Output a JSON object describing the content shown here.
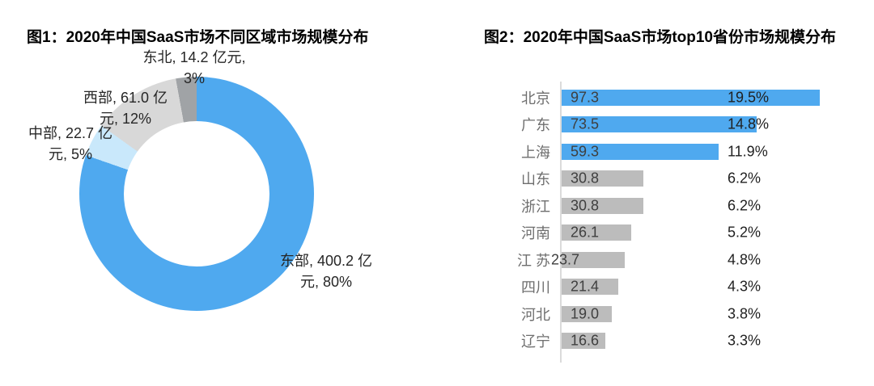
{
  "colors": {
    "east": "#4FA9EF",
    "central": "#C9E8FB",
    "west": "#D8D8D8",
    "northeast": "#A0A3A6",
    "bar_blue": "#4FA9EF",
    "bar_gray": "#BCBCBC",
    "axis_line": "#DBDBDB",
    "category_text": "#6E6E6E",
    "value_text": "#3F3F3F",
    "percent_text": "#1F1F1F",
    "title_text": "#000000"
  },
  "chart_data": [
    {
      "type": "pie",
      "subtype": "donut",
      "title": "图1：2020年中国SaaS市场不同区域市场规模分布",
      "unit": "亿元",
      "legend": "none",
      "slices": [
        {
          "name": "东部",
          "value": 400.2,
          "percent": "80%",
          "color_key": "east",
          "label_lines": [
            "东部, 400.2 亿",
            "元, 80%"
          ]
        },
        {
          "name": "中部",
          "value": 22.7,
          "percent": "5%",
          "color_key": "central",
          "label_lines": [
            "中部, 22.7 亿",
            "元, 5%"
          ]
        },
        {
          "name": "西部",
          "value": 61.0,
          "percent": "12%",
          "color_key": "west",
          "label_lines": [
            "西部, 61.0 亿",
            "元, 12%"
          ]
        },
        {
          "name": "东北",
          "value": 14.2,
          "percent": "3%",
          "color_key": "northeast",
          "label_lines": [
            "东北, 14.2 亿元,",
            "3%"
          ]
        }
      ]
    },
    {
      "type": "bar",
      "orientation": "horizontal",
      "title": "图2：2020年中国SaaS市场top10省份市场规模分布",
      "unit": "亿元",
      "max_scale_value": 97.3,
      "rows": [
        {
          "province": "北京",
          "value": 97.3,
          "value_label": "97.3",
          "percent": "19.5%",
          "color": "blue"
        },
        {
          "province": "广东",
          "value": 73.5,
          "value_label": "73.5",
          "percent": "14.8%",
          "color": "blue"
        },
        {
          "province": "上海",
          "value": 59.3,
          "value_label": "59.3",
          "percent": "11.9%",
          "color": "blue"
        },
        {
          "province": "山东",
          "value": 30.8,
          "value_label": "30.8",
          "percent": "6.2%",
          "color": "gray"
        },
        {
          "province": "浙江",
          "value": 30.8,
          "value_label": "30.8",
          "percent": "6.2%",
          "color": "gray"
        },
        {
          "province": "河南",
          "value": 26.1,
          "value_label": "26.1",
          "percent": "5.2%",
          "color": "gray"
        },
        {
          "province": "江 苏",
          "value": 23.7,
          "value_label": "23.7",
          "percent": "4.8%",
          "color": "gray",
          "value_label_position": "outside-left"
        },
        {
          "province": "四川",
          "value": 21.4,
          "value_label": "21.4",
          "percent": "4.3%",
          "color": "gray"
        },
        {
          "province": "河北",
          "value": 19.0,
          "value_label": "19.0",
          "percent": "3.8%",
          "color": "gray"
        },
        {
          "province": "辽宁",
          "value": 16.6,
          "value_label": "16.6",
          "percent": "3.3%",
          "color": "gray"
        }
      ]
    }
  ]
}
